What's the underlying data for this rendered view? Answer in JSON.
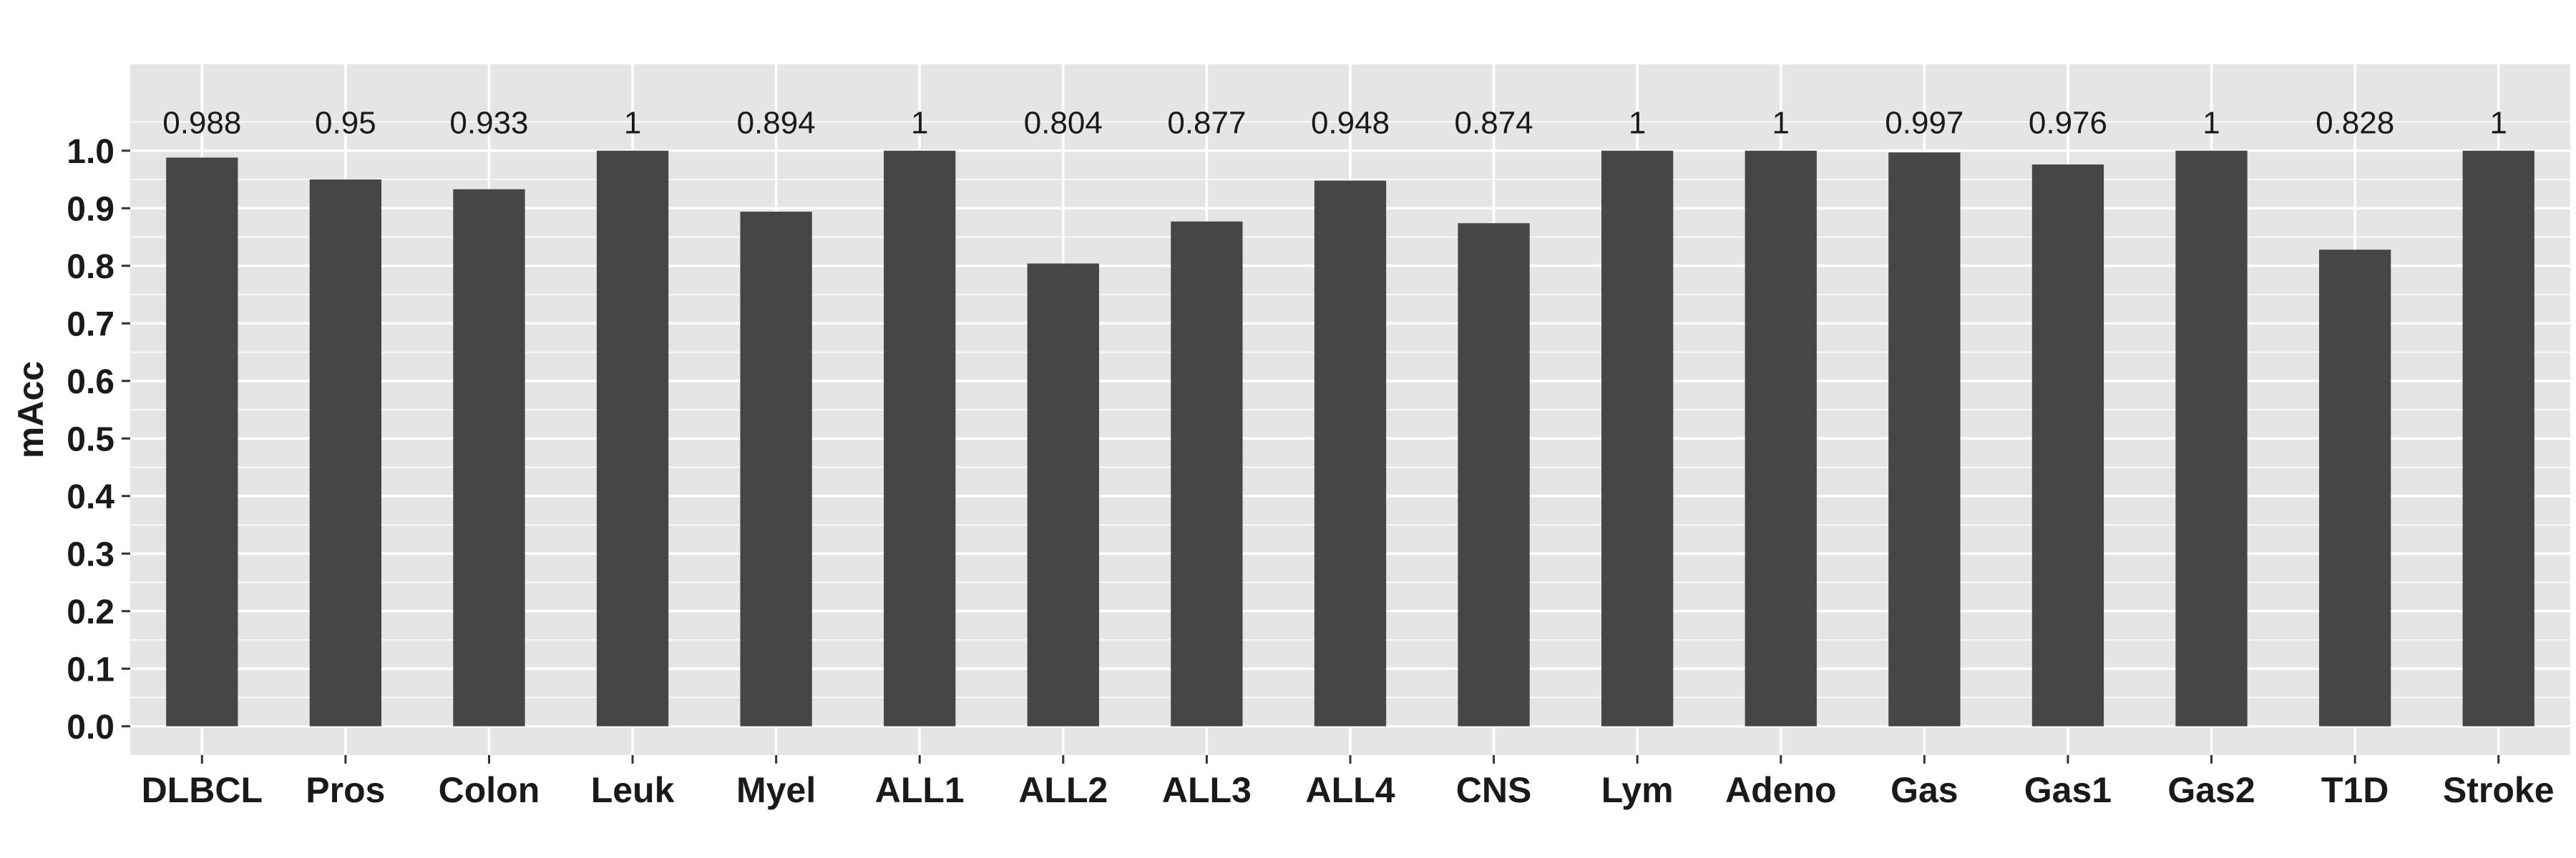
{
  "chart_data": {
    "type": "bar",
    "title": "",
    "xlabel": "",
    "ylabel": "mAcc",
    "categories": [
      "DLBCL",
      "Pros",
      "Colon",
      "Leuk",
      "Myel",
      "ALL1",
      "ALL2",
      "ALL3",
      "ALL4",
      "CNS",
      "Lym",
      "Adeno",
      "Gas",
      "Gas1",
      "Gas2",
      "T1D",
      "Stroke"
    ],
    "values": [
      0.988,
      0.95,
      0.933,
      1,
      0.894,
      1,
      0.804,
      0.877,
      0.948,
      0.874,
      1,
      1,
      0.997,
      0.976,
      1,
      0.828,
      1
    ],
    "data_labels": [
      "0.988",
      "0.95",
      "0.933",
      "1",
      "0.894",
      "1",
      "0.804",
      "0.877",
      "0.948",
      "0.874",
      "1",
      "1",
      "0.997",
      "0.976",
      "1",
      "0.828",
      "1"
    ],
    "ylim": [
      -0.05,
      1.15
    ],
    "yticks": [
      0.0,
      0.1,
      0.2,
      0.3,
      0.4,
      0.5,
      0.6,
      0.7,
      0.8,
      0.9,
      1.0
    ],
    "ytick_labels": [
      "0.0",
      "0.1",
      "0.2",
      "0.3",
      "0.4",
      "0.5",
      "0.6",
      "0.7",
      "0.8",
      "0.9",
      "1.0"
    ],
    "grid": true,
    "legend": "none",
    "colors": {
      "bar": "#464646",
      "panel": "#e5e5e5",
      "grid": "#ffffff",
      "text": "#1a1a1a"
    }
  }
}
